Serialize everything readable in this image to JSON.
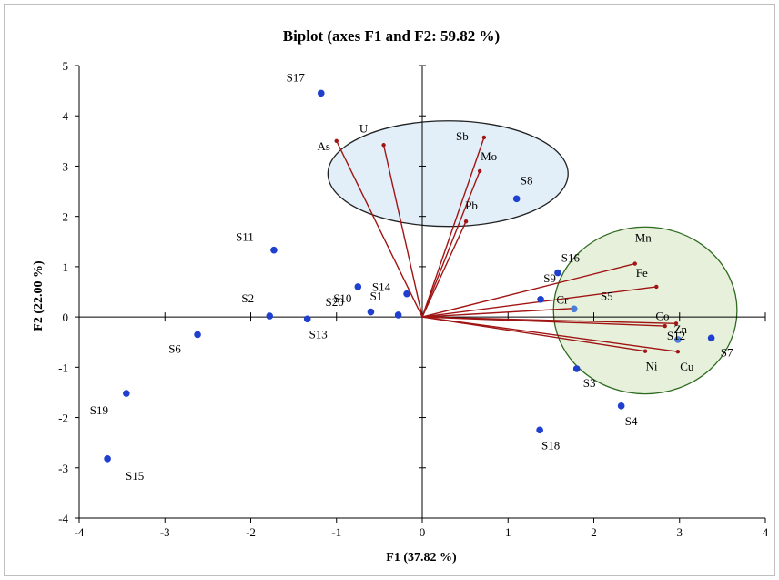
{
  "chart_data": {
    "type": "scatter",
    "title": "Biplot (axes F1 and F2: 59.82 %)",
    "xlabel": "F1 (37.82 %)",
    "ylabel": "F2 (22.00 %)",
    "xlim": [
      -4,
      4
    ],
    "ylim": [
      -4,
      5
    ],
    "xticks": [
      -4,
      -3,
      -2,
      -1,
      0,
      1,
      2,
      3,
      4
    ],
    "yticks": [
      -4,
      -3,
      -2,
      -1,
      0,
      1,
      2,
      3,
      4,
      5
    ],
    "grid": false,
    "legend": "none",
    "colors": {
      "observation": "#1f3fcf",
      "variable": "#a01414",
      "group_1_fill": "#e3eff8",
      "group_1_stroke": "#222222",
      "group_2_fill": "#e6f0da",
      "group_2_stroke": "#2e6b1f"
    },
    "observations": [
      {
        "label": "S1",
        "x": -0.6,
        "y": 0.1
      },
      {
        "label": "S2",
        "x": -1.78,
        "y": 0.02
      },
      {
        "label": "S3",
        "x": 1.8,
        "y": -1.03
      },
      {
        "label": "S4",
        "x": 2.32,
        "y": -1.77
      },
      {
        "label": "S5",
        "x": 1.77,
        "y": 0.16
      },
      {
        "label": "S6",
        "x": -2.62,
        "y": -0.35
      },
      {
        "label": "S7",
        "x": 3.37,
        "y": -0.42
      },
      {
        "label": "S8",
        "x": 1.1,
        "y": 2.35
      },
      {
        "label": "S9",
        "x": 1.38,
        "y": 0.35
      },
      {
        "label": "S10",
        "x": -0.75,
        "y": 0.6
      },
      {
        "label": "S11",
        "x": -1.73,
        "y": 1.33
      },
      {
        "label": "S12",
        "x": 2.98,
        "y": -0.45
      },
      {
        "label": "S13",
        "x": -1.34,
        "y": -0.04
      },
      {
        "label": "S14",
        "x": -0.18,
        "y": 0.46
      },
      {
        "label": "S15",
        "x": -3.67,
        "y": -2.82
      },
      {
        "label": "S16",
        "x": 1.58,
        "y": 0.88
      },
      {
        "label": "S17",
        "x": -1.18,
        "y": 4.45
      },
      {
        "label": "S18",
        "x": 1.37,
        "y": -2.25
      },
      {
        "label": "S19",
        "x": -3.45,
        "y": -1.52
      },
      {
        "label": "S20",
        "x": -0.28,
        "y": 0.04
      }
    ],
    "variables": [
      {
        "label": "As",
        "x": -1.0,
        "y": 3.5
      },
      {
        "label": "U",
        "x": -0.45,
        "y": 3.42
      },
      {
        "label": "Sb",
        "x": 0.72,
        "y": 3.57
      },
      {
        "label": "Mo",
        "x": 0.67,
        "y": 2.9
      },
      {
        "label": "Pb",
        "x": 0.51,
        "y": 1.9
      },
      {
        "label": "Mn",
        "x": 2.48,
        "y": 1.06
      },
      {
        "label": "Fe",
        "x": 2.73,
        "y": 0.6
      },
      {
        "label": "Cr",
        "x": 1.77,
        "y": 0.17
      },
      {
        "label": "Co",
        "x": 2.96,
        "y": -0.13
      },
      {
        "label": "Zn",
        "x": 2.83,
        "y": -0.18
      },
      {
        "label": "Ni",
        "x": 2.6,
        "y": -0.68
      },
      {
        "label": "Cu",
        "x": 2.98,
        "y": -0.69
      }
    ]
  }
}
